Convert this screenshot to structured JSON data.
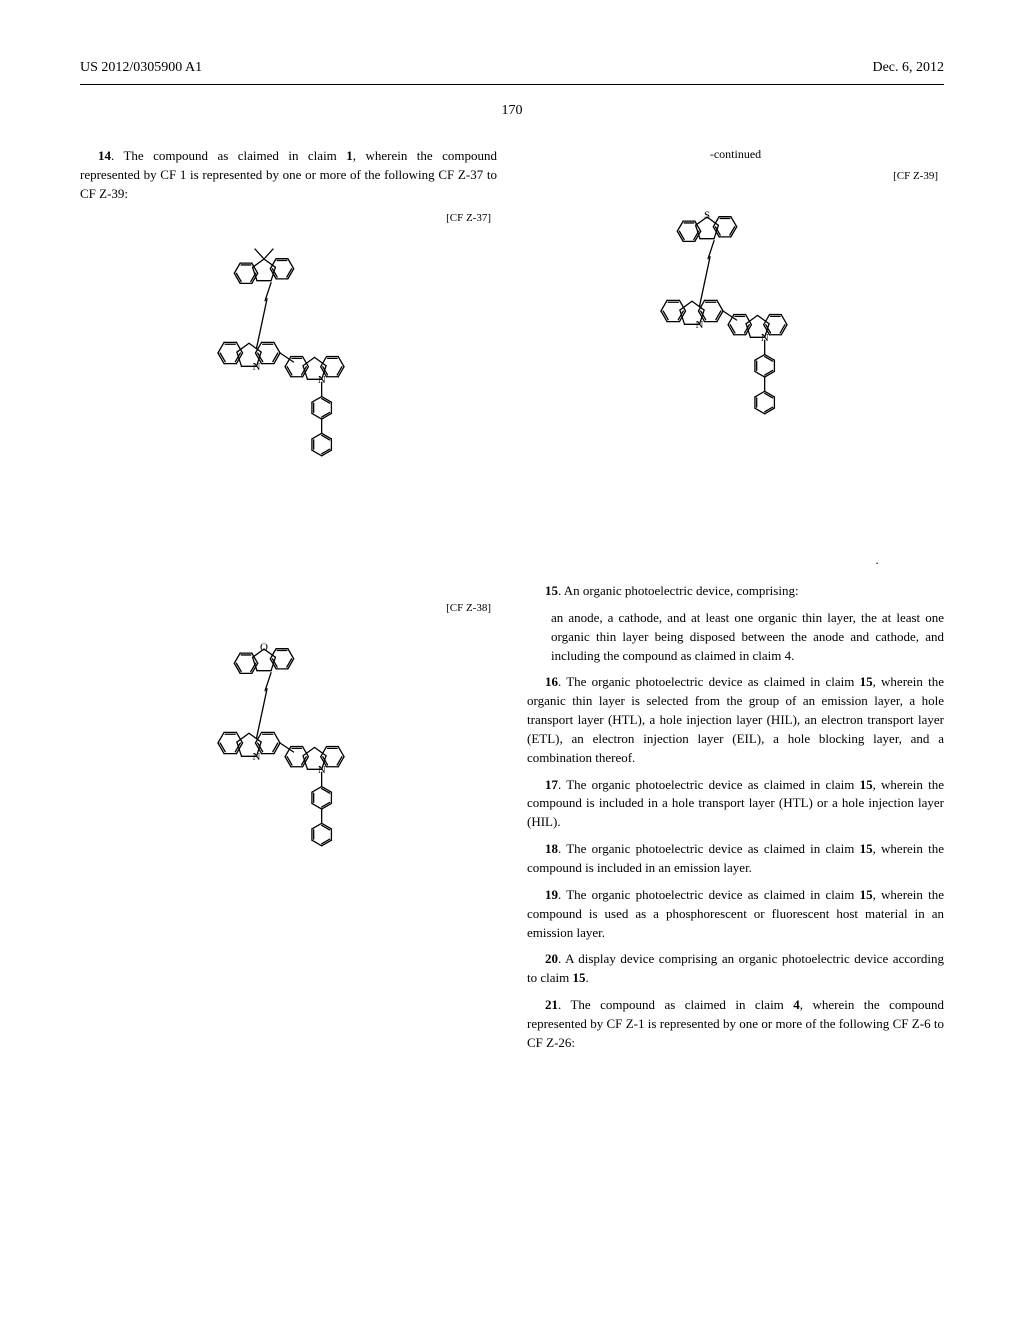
{
  "header": {
    "publication_number": "US 2012/0305900 A1",
    "date": "Dec. 6, 2012"
  },
  "page_number": "170",
  "left_col": {
    "claim14": {
      "num": "14",
      "text": ". The compound as claimed in claim ",
      "ref": "1",
      "text2": ", wherein the compound represented by CF 1 is represented by one or more of the following CF Z-37 to CF Z-39:"
    },
    "labels": {
      "l37": "[CF Z-37]",
      "l38": "[CF Z-38]"
    }
  },
  "right_col": {
    "continued": "-continued",
    "labels": {
      "l39": "[CF Z-39]"
    },
    "claim15": {
      "num": "15",
      "lead": ". An organic photoelectric device, comprising:",
      "body": "an anode, a cathode, and at least one organic thin layer, the at least one organic thin layer being disposed between the anode and cathode, and including the compound as claimed in claim ",
      "ref": "4",
      "tail": "."
    },
    "claim16": {
      "num": "16",
      "text": ". The organic photoelectric device as claimed in claim ",
      "ref": "15",
      "text2": ", wherein the organic thin layer is selected from the group of an emission layer, a hole transport layer (HTL), a hole injection layer (HIL), an electron transport layer (ETL), an electron injection layer (EIL), a hole blocking layer, and a combination thereof."
    },
    "claim17": {
      "num": "17",
      "text": ". The organic photoelectric device as claimed in claim ",
      "ref": "15",
      "text2": ", wherein the compound is included in a hole transport layer (HTL) or a hole injection layer (HIL)."
    },
    "claim18": {
      "num": "18",
      "text": ". The organic photoelectric device as claimed in claim ",
      "ref": "15",
      "text2": ", wherein the compound is included in an emission layer."
    },
    "claim19": {
      "num": "19",
      "text": ". The organic photoelectric device as claimed in claim ",
      "ref": "15",
      "text2": ", wherein the compound is used as a phosphorescent or fluorescent host material in an emission layer."
    },
    "claim20": {
      "num": "20",
      "text": ". A display device comprising an organic photoelectric device according to claim ",
      "ref": "15",
      "text2": "."
    },
    "claim21": {
      "num": "21",
      "text": ". The compound as claimed in claim ",
      "ref": "4",
      "text2": ", wherein the compound represented by CF Z-1 is represented by one or more of the following CF Z-6 to CF Z-26:"
    }
  },
  "chem": {
    "stroke": "#000000",
    "stroke_width": 1.3,
    "double_gap": 2.4,
    "text_color": "#000000",
    "text_size": 11
  }
}
